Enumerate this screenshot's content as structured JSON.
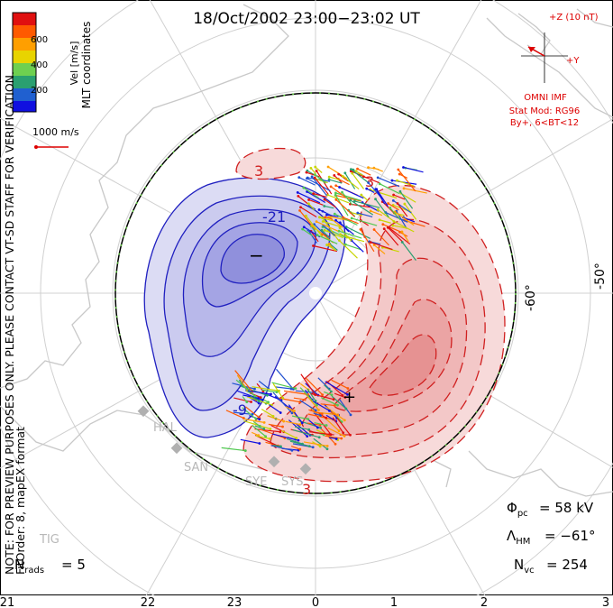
{
  "title": "18/Oct/2002 23:00−23:02 UT",
  "side_note_lines": [
    "NOTE: FOR PREVIEW PURPOSES ONLY. PLEASE CONTACT VT-SD STAFF FOR VERIFICATION.",
    "FitOrder: 8, mapEX format"
  ],
  "coord_label": "MLT coordinates",
  "colorbar": {
    "label": "Vel [m/s]",
    "ticks": [
      "600",
      "400",
      "200"
    ],
    "colors": [
      "#e01010",
      "#ff5a00",
      "#ff9f00",
      "#c8d400",
      "#50c850",
      "#2aa070",
      "#2050d0",
      "#1010e0"
    ]
  },
  "scale_vector_label": "1000 m/s",
  "imf": {
    "z_label": "+Z (10 nT)",
    "y_label": "+Y",
    "model_label": "OMNI IMF",
    "stat_mod": "Stat Mod: RG96",
    "condition": "By+, 6<BT<12"
  },
  "latitude_labels": [
    "-60°",
    "-50°"
  ],
  "contour_labels": [
    "-21",
    "-9",
    "3",
    "3",
    "3"
  ],
  "extrema_markers": [
    "−",
    "+"
  ],
  "stations": [
    "HAL",
    "SAN",
    "SYE",
    "SYS",
    "TIG"
  ],
  "stats": {
    "phi_pc": "= 58 kV",
    "lambda_hm": "= −61°",
    "n_vc": "= 254",
    "n_rads": "= 5"
  },
  "stat_labels": {
    "phi": "Φ",
    "phi_sub": "pc",
    "lambda": "Λ",
    "lambda_sub": "HM",
    "nvc": "N",
    "nvc_sub": "vc",
    "nrads": "N",
    "nrads_sub": "rads"
  },
  "mlt_ticks": [
    "21",
    "22",
    "23",
    "0",
    "1",
    "2",
    "3"
  ],
  "colors": {
    "negative": "#2020c0",
    "positive": "#d02020",
    "neg_fill": "#c8c8ee",
    "pos_fill": "#f4c4c4",
    "coast": "#c8c8c8",
    "imf_red": "#dd0000"
  }
}
